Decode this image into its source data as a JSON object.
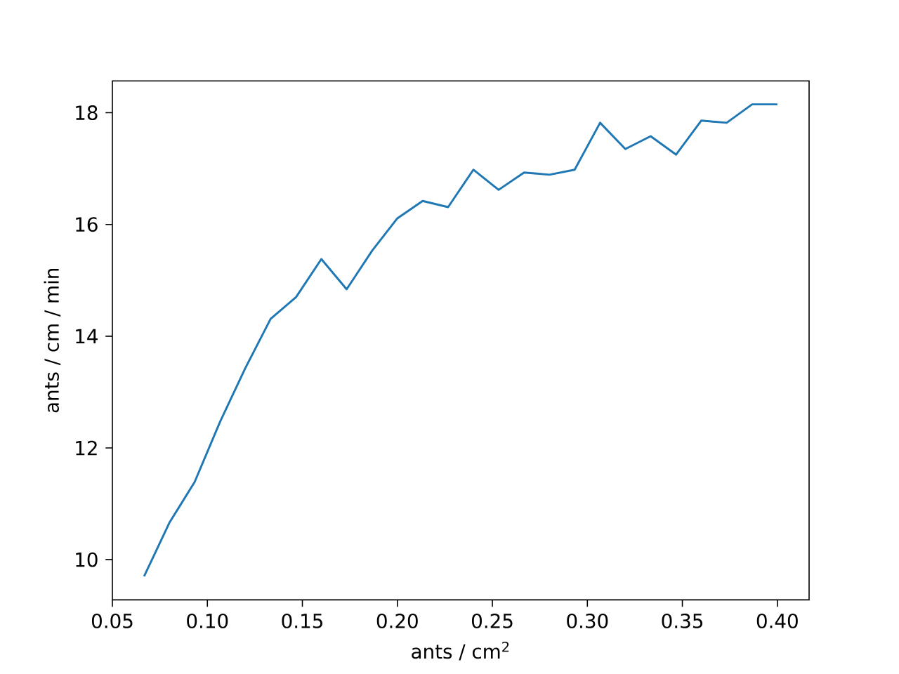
{
  "chart_data": {
    "type": "line",
    "xlabel": "ants / cm$^{2}$",
    "ylabel": "ants / cm / min",
    "x": [
      0.0667,
      0.08,
      0.0933,
      0.1067,
      0.12,
      0.1333,
      0.1467,
      0.16,
      0.1733,
      0.1867,
      0.2,
      0.2133,
      0.2267,
      0.24,
      0.2533,
      0.2667,
      0.28,
      0.2933,
      0.3067,
      0.32,
      0.3333,
      0.3467,
      0.36,
      0.3733,
      0.3867,
      0.4
    ],
    "series": [
      {
        "color": "#1f77b4",
        "values": [
          9.7,
          10.66,
          11.39,
          12.47,
          13.43,
          14.31,
          14.7,
          15.38,
          14.84,
          15.53,
          16.11,
          16.42,
          16.31,
          16.98,
          16.62,
          16.93,
          16.89,
          16.98,
          17.82,
          17.35,
          17.58,
          17.25,
          17.86,
          17.82,
          18.15,
          18.15
        ]
      }
    ],
    "xlim": [
      0.05,
      0.4167
    ],
    "ylim": [
      9.28,
      18.57
    ],
    "xticks": [
      {
        "value": 0.05,
        "label": "0.05"
      },
      {
        "value": 0.1,
        "label": "0.10"
      },
      {
        "value": 0.15,
        "label": "0.15"
      },
      {
        "value": 0.2,
        "label": "0.20"
      },
      {
        "value": 0.25,
        "label": "0.25"
      },
      {
        "value": 0.3,
        "label": "0.30"
      },
      {
        "value": 0.35,
        "label": "0.35"
      },
      {
        "value": 0.4,
        "label": "0.40"
      }
    ],
    "yticks": [
      10,
      12,
      14,
      16,
      18
    ]
  }
}
